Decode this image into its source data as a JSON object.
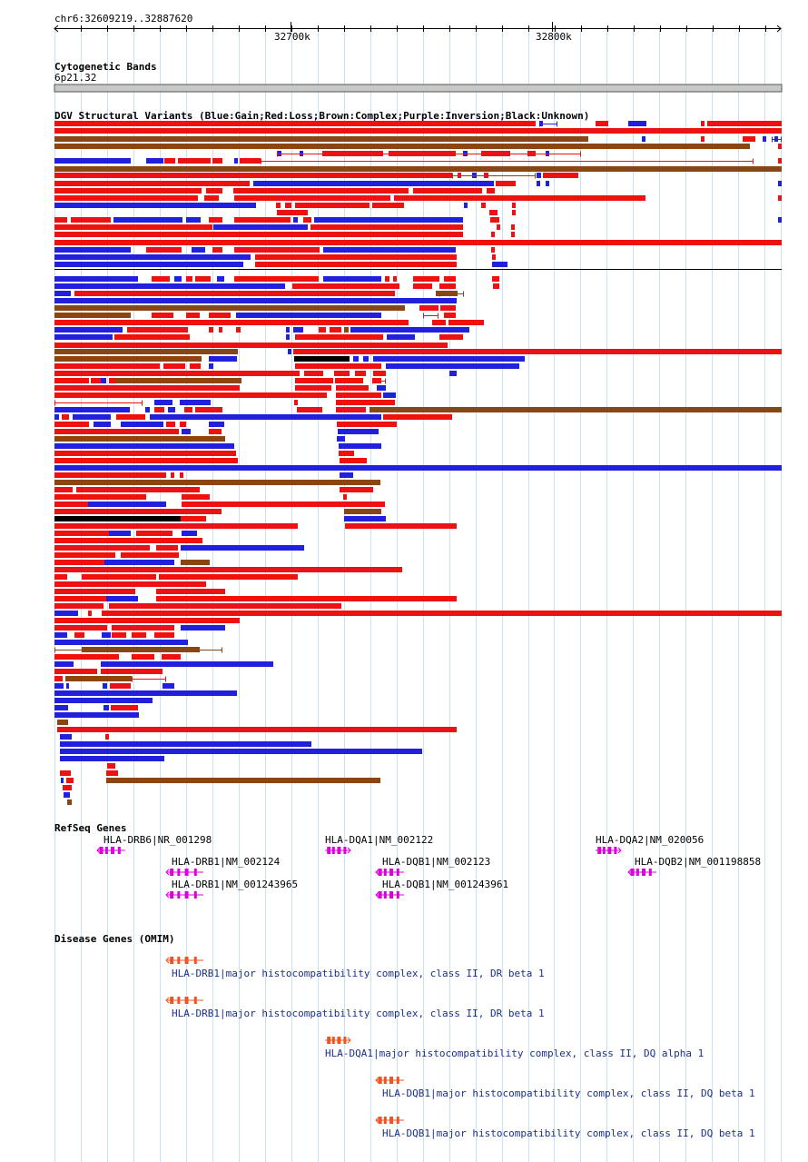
{
  "region": "chr6:32609219..32887620",
  "ruler": {
    "ticks": [
      "32700k",
      "32800k"
    ]
  },
  "cytoband": {
    "title": "Cytogenetic Bands",
    "band": "6p21.32"
  },
  "dgv": {
    "title": "DGV Structural Variants (Blue:Gain;Red:Loss;Brown:Complex;Purple:Inversion;Black:Unknown)",
    "legend": {
      "gain": "#2020dd",
      "loss": "#ee1111",
      "complex": "#8b4513",
      "inversion": "#8b00ff",
      "unknown": "#000000"
    }
  },
  "refseq": {
    "title": "RefSeq Genes",
    "genes": [
      {
        "label": "HLA-DRB6|NR_001298"
      },
      {
        "label": "HLA-DQA1|NM_002122"
      },
      {
        "label": "HLA-DQA2|NM_020056"
      },
      {
        "label": "HLA-DRB1|NM_002124"
      },
      {
        "label": "HLA-DQB1|NM_002123"
      },
      {
        "label": "HLA-DQB2|NM_001198858"
      },
      {
        "label": "HLA-DRB1|NM_001243965"
      },
      {
        "label": "HLA-DQB1|NM_001243961"
      }
    ],
    "color": "#dd00dd"
  },
  "omim": {
    "title": "Disease Genes (OMIM)",
    "entries": [
      {
        "label": "HLA-DRB1|major histocompatibility complex, class II, DR beta 1"
      },
      {
        "label": "HLA-DRB1|major histocompatibility complex, class II, DR beta 1"
      },
      {
        "label": "HLA-DQA1|major histocompatibility complex, class II, DQ alpha 1"
      },
      {
        "label": "HLA-DQB1|major histocompatibility complex, class II, DQ beta 1"
      },
      {
        "label": "HLA-DQB1|major histocompatibility complex, class II, DQ beta 1"
      }
    ],
    "color": "#ee5522"
  }
}
